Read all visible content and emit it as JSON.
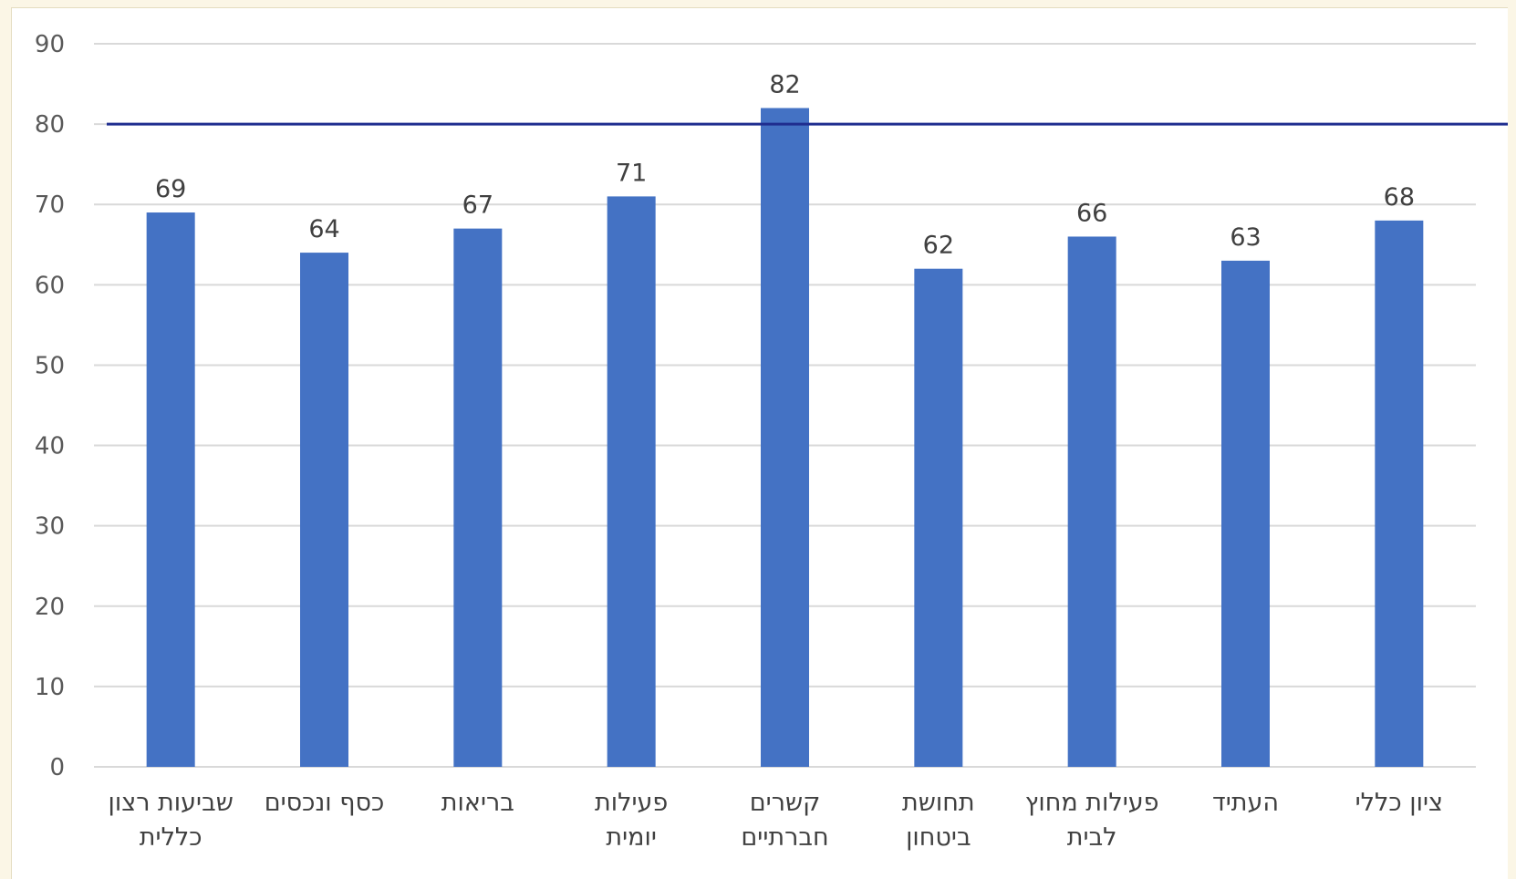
{
  "chart_data": {
    "type": "bar",
    "title": "",
    "xlabel": "",
    "ylabel": "",
    "ylim": [
      0,
      90
    ],
    "yticks": [
      0,
      10,
      20,
      30,
      40,
      50,
      60,
      70,
      80,
      90
    ],
    "grid": true,
    "categories": [
      [
        "שביעות רצון",
        "כללית"
      ],
      [
        "כסף ונכסים"
      ],
      [
        "בריאות"
      ],
      [
        "פעילות",
        "יומית"
      ],
      [
        "קשרים",
        "חברתיים"
      ],
      [
        "תחושת",
        "ביטחון"
      ],
      [
        "פעילות מחוץ",
        "לבית"
      ],
      [
        "העתיד"
      ],
      [
        "ציון כללי"
      ]
    ],
    "values": [
      69,
      64,
      67,
      71,
      82,
      62,
      66,
      63,
      68
    ],
    "data_labels": true,
    "reference_line": 80,
    "colors": {
      "bar": "#4472c4",
      "reference_line": "#1f2d8f",
      "grid": "#d9d9d9"
    }
  }
}
